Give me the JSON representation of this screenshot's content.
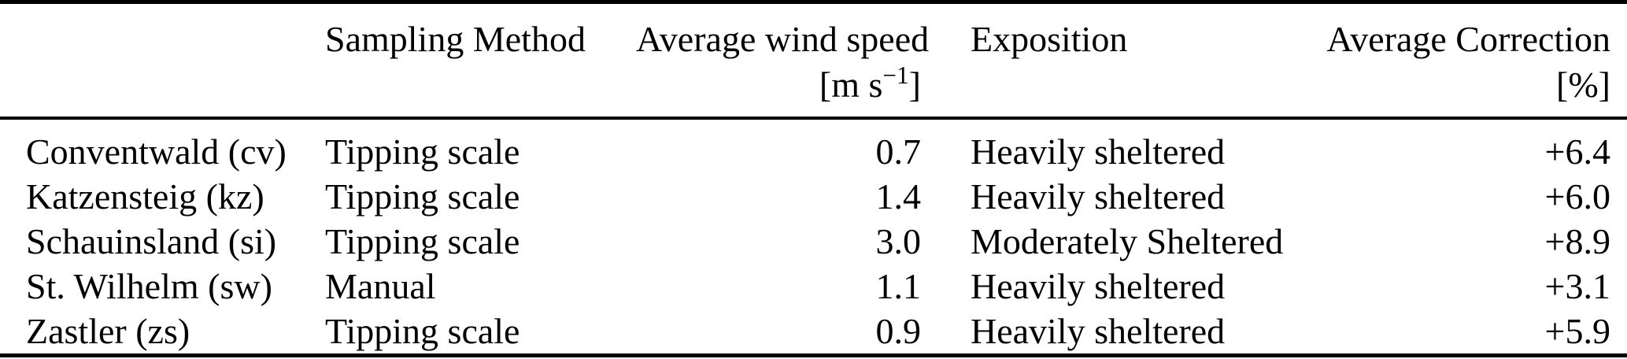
{
  "chart_data": {
    "type": "table",
    "header": {
      "site": "",
      "sampling_method": "Sampling Method",
      "wind_speed_title": "Average wind speed",
      "wind_speed_unit_pre": "[m s",
      "wind_speed_unit_sup": "−1",
      "wind_speed_unit_post": "]",
      "exposition": "Exposition",
      "correction_title": "Average Correction",
      "correction_unit": "[%]"
    },
    "rows": [
      {
        "site": "Conventwald (cv)",
        "method": "Tipping scale",
        "wind_speed": "0.7",
        "exposition": "Heavily sheltered",
        "correction": "+6.4"
      },
      {
        "site": "Katzensteig (kz)",
        "method": "Tipping scale",
        "wind_speed": "1.4",
        "exposition": "Heavily sheltered",
        "correction": "+6.0"
      },
      {
        "site": "Schauinsland (si)",
        "method": "Tipping scale",
        "wind_speed": "3.0",
        "exposition": "Moderately Sheltered",
        "correction": "+8.9"
      },
      {
        "site": "St. Wilhelm (sw)",
        "method": "Manual",
        "wind_speed": "1.1",
        "exposition": "Heavily sheltered",
        "correction": "+3.1"
      },
      {
        "site": "Zastler (zs)",
        "method": "Tipping scale",
        "wind_speed": "0.9",
        "exposition": "Heavily sheltered",
        "correction": "+5.9"
      }
    ],
    "colors": {
      "text": "#000000",
      "background": "#ffffff",
      "rule": "#000000"
    }
  }
}
